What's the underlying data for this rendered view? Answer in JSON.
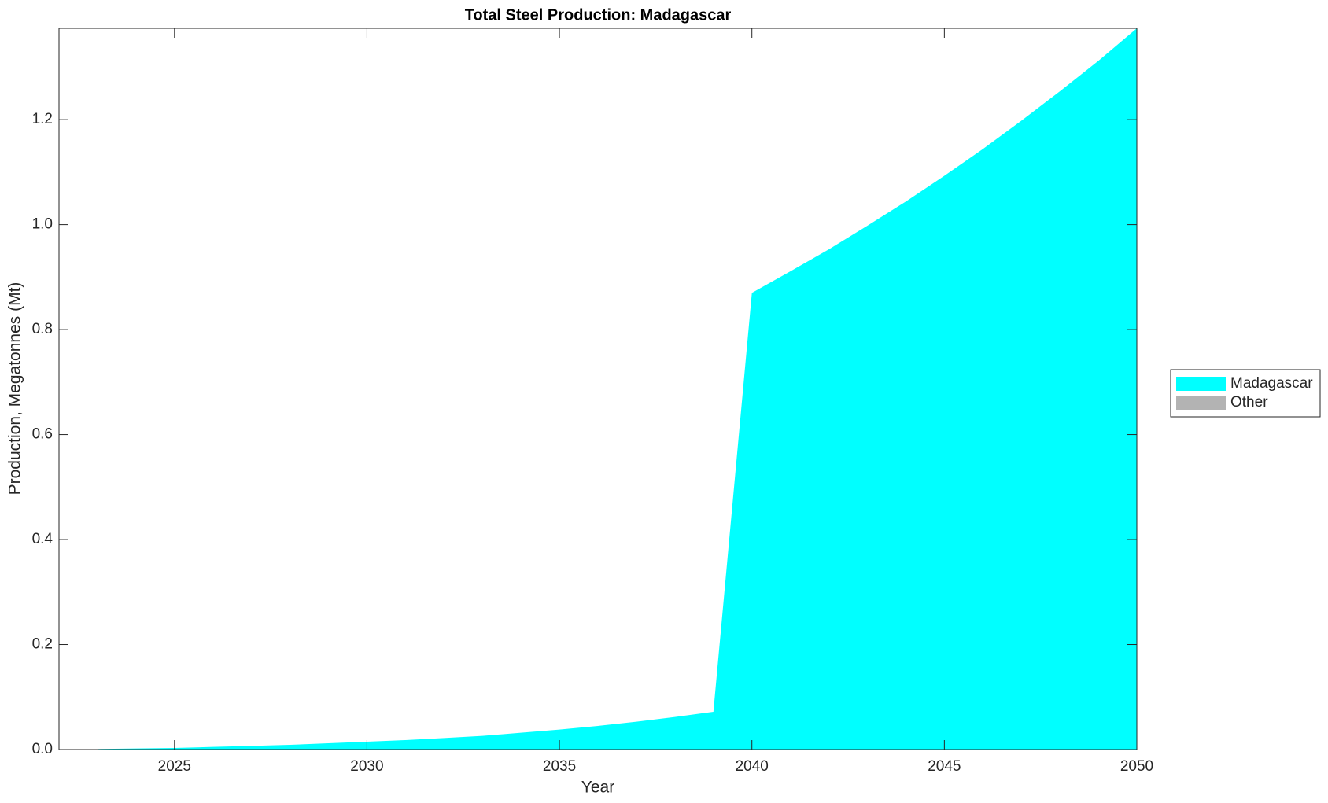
{
  "chart_data": {
    "type": "area",
    "title": "Total Steel Production: Madagascar",
    "xlabel": "Year",
    "ylabel": "Production, Megatonnes (Mt)",
    "x": [
      2023,
      2024,
      2025,
      2026,
      2027,
      2028,
      2029,
      2030,
      2031,
      2032,
      2033,
      2034,
      2035,
      2036,
      2037,
      2038,
      2039,
      2040,
      2041,
      2042,
      2043,
      2044,
      2045,
      2046,
      2047,
      2048,
      2049,
      2050
    ],
    "series": [
      {
        "name": "Madagascar",
        "color": "#00ffff",
        "values": [
          0.001,
          0.002,
          0.003,
          0.005,
          0.007,
          0.009,
          0.012,
          0.015,
          0.018,
          0.022,
          0.026,
          0.032,
          0.038,
          0.045,
          0.053,
          0.062,
          0.072,
          0.87,
          0.911,
          0.953,
          0.998,
          1.044,
          1.093,
          1.144,
          1.198,
          1.254,
          1.312,
          1.374
        ]
      },
      {
        "name": "Other",
        "color": "#b3b3b3",
        "values": [
          0,
          0,
          0,
          0,
          0,
          0,
          0,
          0,
          0,
          0,
          0,
          0,
          0,
          0,
          0,
          0,
          0,
          0,
          0,
          0,
          0,
          0,
          0,
          0,
          0,
          0,
          0,
          0
        ]
      }
    ],
    "xlim": [
      2022,
      2050
    ],
    "ylim": [
      0,
      1.374
    ],
    "xticks": [
      2025,
      2030,
      2035,
      2040,
      2045,
      2050
    ],
    "yticks": [
      {
        "value": 0,
        "label": "0.0"
      },
      0.2,
      0.4,
      0.6,
      0.8,
      {
        "value": 1,
        "label": "1.0"
      },
      1.2
    ],
    "legend": "outside-right"
  }
}
